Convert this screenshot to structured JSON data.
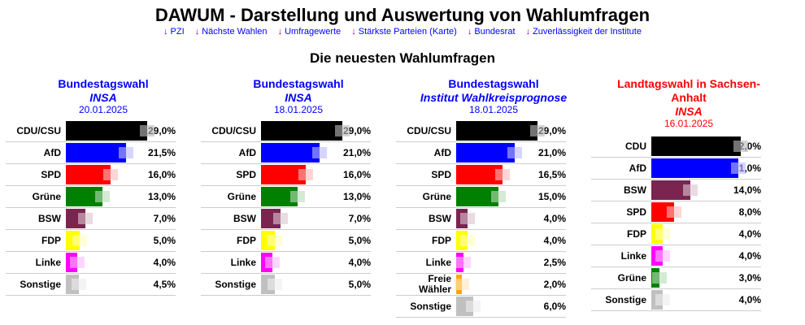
{
  "title": "DAWUM - Darstellung und Auswertung von Wahlumfragen",
  "nav": [
    "PZI",
    "Nächste Wahlen",
    "Umfragewerte",
    "Stärkste Parteien (Karte)",
    "Bundesrat",
    "Zuverlässigkeit der Institute"
  ],
  "nav_arrow": "↓",
  "subtitle": "Die neuesten Wahlumfragen",
  "polls": [
    {
      "title": "Bundestagswahl",
      "institute": "INSA",
      "date": "20.01.2025",
      "color": "#0000ff",
      "rows": [
        [
          "CDU/CSU",
          "29,0%",
          29,
          "#000000"
        ],
        [
          "AfD",
          "21,5%",
          21.5,
          "#0000ff"
        ],
        [
          "SPD",
          "16,0%",
          16,
          "#ff0000"
        ],
        [
          "Grüne",
          "13,0%",
          13,
          "#008000"
        ],
        [
          "BSW",
          "7,0%",
          7,
          "#7b2450"
        ],
        [
          "FDP",
          "5,0%",
          5,
          "#ffff00"
        ],
        [
          "Linke",
          "4,0%",
          4,
          "#ff00ff"
        ],
        [
          "Sonstige",
          "4,5%",
          4.5,
          "#c0c0c0"
        ]
      ]
    },
    {
      "title": "Bundestagswahl",
      "institute": "INSA",
      "date": "18.01.2025",
      "color": "#0000ff",
      "rows": [
        [
          "CDU/CSU",
          "29,0%",
          29,
          "#000000"
        ],
        [
          "AfD",
          "21,0%",
          21,
          "#0000ff"
        ],
        [
          "SPD",
          "16,0%",
          16,
          "#ff0000"
        ],
        [
          "Grüne",
          "13,0%",
          13,
          "#008000"
        ],
        [
          "BSW",
          "7,0%",
          7,
          "#7b2450"
        ],
        [
          "FDP",
          "5,0%",
          5,
          "#ffff00"
        ],
        [
          "Linke",
          "4,0%",
          4,
          "#ff00ff"
        ],
        [
          "Sonstige",
          "5,0%",
          5,
          "#c0c0c0"
        ]
      ]
    },
    {
      "title": "Bundestagswahl",
      "institute": "Institut Wahlkreisprognose",
      "date": "18.01.2025",
      "color": "#0000ff",
      "rows": [
        [
          "CDU/CSU",
          "29,0%",
          29,
          "#000000"
        ],
        [
          "AfD",
          "21,0%",
          21,
          "#0000ff"
        ],
        [
          "SPD",
          "16,5%",
          16.5,
          "#ff0000"
        ],
        [
          "Grüne",
          "15,0%",
          15,
          "#008000"
        ],
        [
          "BSW",
          "4,0%",
          4,
          "#7b2450"
        ],
        [
          "FDP",
          "4,0%",
          4,
          "#ffff00"
        ],
        [
          "Linke",
          "2,5%",
          2.5,
          "#ff00ff"
        ],
        [
          "Freie Wähler",
          "2,0%",
          2,
          "#ffa500"
        ],
        [
          "Sonstige",
          "6,0%",
          6,
          "#c0c0c0"
        ]
      ]
    },
    {
      "title": "Landtagswahl in Sachsen-Anhalt",
      "institute": "INSA",
      "date": "16.01.2025",
      "color": "#ff0000",
      "rows": [
        [
          "CDU",
          "32,0%",
          32,
          "#000000"
        ],
        [
          "AfD",
          "31,0%",
          31,
          "#0000ff"
        ],
        [
          "BSW",
          "14,0%",
          14,
          "#7b2450"
        ],
        [
          "SPD",
          "8,0%",
          8,
          "#ff0000"
        ],
        [
          "FDP",
          "4,0%",
          4,
          "#ffff00"
        ],
        [
          "Linke",
          "4,0%",
          4,
          "#ff00ff"
        ],
        [
          "Grüne",
          "3,0%",
          3,
          "#008000"
        ],
        [
          "Sonstige",
          "4,0%",
          4,
          "#c0c0c0"
        ]
      ]
    }
  ]
}
